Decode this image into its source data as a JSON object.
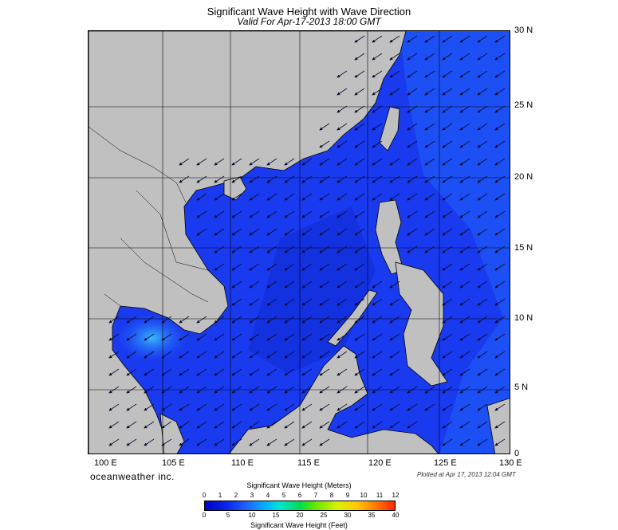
{
  "title": "Significant Wave Height with Wave Direction",
  "subtitle": "Valid For Apr-17-2013 18:00 GMT",
  "map": {
    "land_color": "#c0c0c0",
    "ocean_base_color": "#1a3af0",
    "grid": true,
    "lat_labels": [
      "30 N",
      "25 N",
      "20 N",
      "15 N",
      "10 N",
      "5 N",
      "0"
    ],
    "lon_labels": [
      "100 E",
      "105 E",
      "110 E",
      "115 E",
      "120 E",
      "125 E",
      "130 E"
    ],
    "wave_direction": "toward south-west"
  },
  "branding": "oceanweather inc.",
  "plotted_note": "Plotted at Apr 17, 2013 12:04 GMT",
  "colorbar": {
    "title_meters": "Significant Wave Height (Meters)",
    "title_feet": "Significant Wave Height (Feet)",
    "meter_ticks": [
      "0",
      "1",
      "2",
      "3",
      "4",
      "5",
      "6",
      "7",
      "8",
      "9",
      "10",
      "11",
      "12"
    ],
    "feet_ticks": [
      "0",
      "5",
      "10",
      "15",
      "20",
      "25",
      "30",
      "35",
      "40"
    ]
  }
}
